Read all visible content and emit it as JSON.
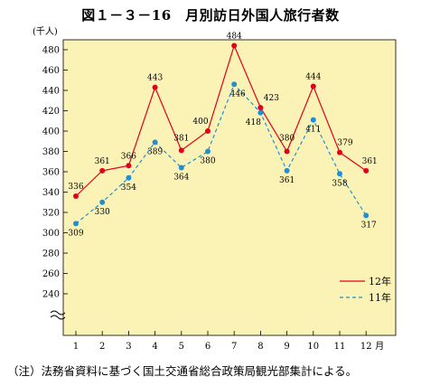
{
  "chart_data": {
    "type": "line",
    "title": "図１－３－16　月別訪日外国人旅行者数",
    "ylabel": "(千人)",
    "xlabel": "",
    "x_unit": "月",
    "categories": [
      "1",
      "2",
      "3",
      "4",
      "5",
      "6",
      "7",
      "8",
      "9",
      "10",
      "11",
      "12"
    ],
    "y_ticks": [
      240,
      260,
      280,
      300,
      320,
      340,
      360,
      380,
      400,
      420,
      440,
      460,
      480
    ],
    "ylim": [
      230,
      490
    ],
    "axis_break": true,
    "grid": false,
    "legend_position": "bottom-right",
    "series": [
      {
        "name": "12年",
        "style": "solid",
        "color": "#e0001b",
        "values": [
          336,
          361,
          366,
          443,
          381,
          400,
          484,
          423,
          380,
          444,
          379,
          361
        ]
      },
      {
        "name": "11年",
        "style": "dashed",
        "color": "#1f8fd6",
        "values": [
          309,
          330,
          354,
          389,
          364,
          380,
          446,
          418,
          361,
          411,
          358,
          317
        ]
      }
    ]
  },
  "colors": {
    "plot_background": "#fbf3b6"
  },
  "note": "（注）法務省資料に基づく国土交通省総合政策局観光部集計による。"
}
